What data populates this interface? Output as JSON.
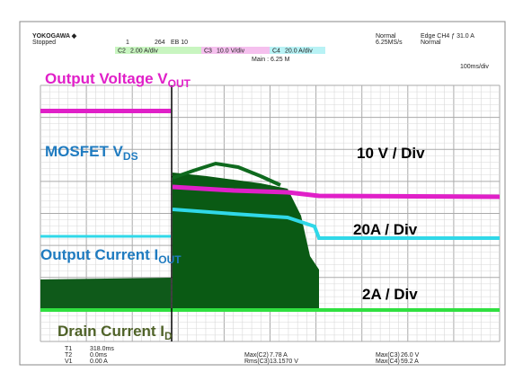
{
  "header": {
    "brand": "YOKOGAWA ◆",
    "status": "Stopped",
    "record": "1",
    "count": "264",
    "mode_flags": "EB  10",
    "acq_mode": "Normal",
    "sample_rate": "6.25MS/s",
    "trigger": "Edge CH4 ƒ 31.0 A",
    "trigger_mode": "Normal",
    "main": "Main : 6.25 M",
    "timebase": "100ms/div"
  },
  "channels": [
    {
      "name": "C2",
      "scale": "2.00 A/div"
    },
    {
      "name": "C3",
      "scale": "10.0 V/div"
    },
    {
      "name": "C4",
      "scale": "20.0 A/div"
    }
  ],
  "annotations": [
    {
      "text": "Output Voltage V",
      "sub": "OUT"
    },
    {
      "text": "MOSFET V",
      "sub": "DS"
    },
    {
      "text": "Output Current I",
      "sub": "OUT"
    },
    {
      "text": "Drain Current I",
      "sub": "D"
    }
  ],
  "scales": [
    "10 V / Div",
    "20A / Div",
    "2A / Div"
  ],
  "measurements": [
    {
      "label": "T1",
      "value": "318.0ms"
    },
    {
      "label": "T2",
      "value": "0.0ms"
    },
    {
      "label": "V1",
      "value": "0.00 A"
    },
    {
      "label": "Max(C2)",
      "value": "7.78 A"
    },
    {
      "label": "Rms(C3)",
      "value": "13.1570 V"
    },
    {
      "label": "Max(C3)",
      "value": "26.0 V"
    },
    {
      "label": "Max(C4)",
      "value": "59.2 A"
    }
  ]
}
